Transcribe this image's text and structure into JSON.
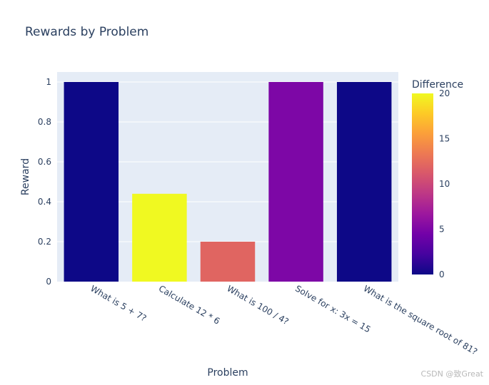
{
  "chart_data": {
    "type": "bar",
    "title": "Rewards by Problem",
    "xlabel": "Problem",
    "ylabel": "Reward",
    "categories": [
      "What is 5 + 7?",
      "Calculate 12 * 6",
      "What is 100 / 4?",
      "Solve for x: 3x = 15",
      "What is the square root of 81?"
    ],
    "values": [
      1,
      0.44,
      0.2,
      1,
      1
    ],
    "color_values": [
      0,
      20,
      12,
      5,
      0
    ],
    "ylim": [
      0,
      1.05
    ],
    "y_ticks": [
      0,
      0.2,
      0.4,
      0.6,
      0.8,
      1
    ],
    "y_tick_labels": [
      "0",
      "0.2",
      "0.4",
      "0.6",
      "0.8",
      "1"
    ],
    "colorbar": {
      "title": "Difference",
      "range": [
        0,
        20
      ],
      "ticks": [
        0,
        5,
        10,
        15,
        20
      ],
      "tick_labels": [
        "0",
        "5",
        "10",
        "15",
        "20"
      ],
      "colorscale": [
        "#0d0887",
        "#46039f",
        "#7201a8",
        "#9c179e",
        "#bd3786",
        "#d8576b",
        "#ed7953",
        "#fb9f3a",
        "#fdca26",
        "#f0f921"
      ]
    },
    "grid": true,
    "plot_bgcolor": "#e5ecf6"
  },
  "watermark": "CSDN @致Great"
}
